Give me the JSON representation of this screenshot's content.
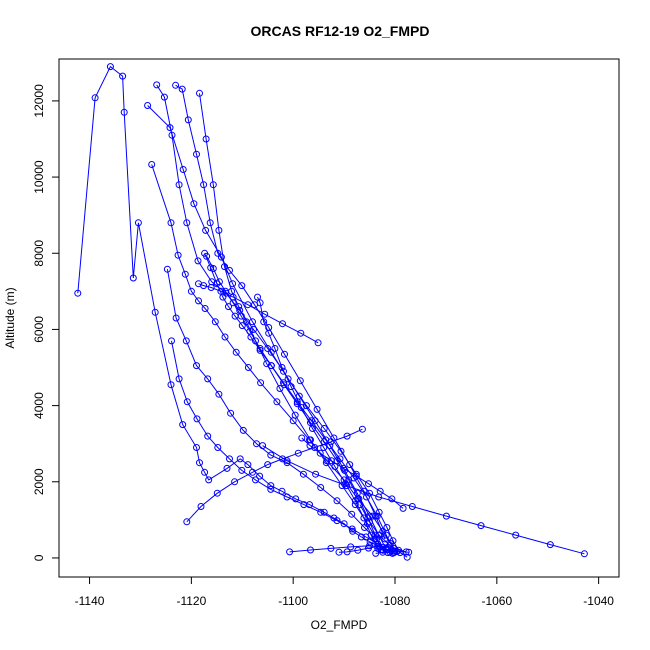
{
  "chart_data": {
    "type": "line",
    "title": "ORCAS RF12-19 O2_FMPD",
    "xlabel": "O2_FMPD",
    "ylabel": "Altitude (m)",
    "xlim": [
      -1146,
      -1036
    ],
    "ylim": [
      -500,
      13100
    ],
    "xticks": [
      -1140,
      -1120,
      -1100,
      -1080,
      -1060,
      -1040
    ],
    "yticks": [
      0,
      2000,
      4000,
      6000,
      8000,
      10000,
      12000
    ],
    "grid": false,
    "color": "#0000ff",
    "marker": "open-circle",
    "series": [
      {
        "x": [
          -1142.3,
          -1138.9,
          -1135.9,
          -1133.5,
          -1133.2,
          -1131.4,
          -1130.4,
          -1127.1,
          -1124.0,
          -1121.7,
          -1119.0,
          -1118.4,
          -1117.4,
          -1116.6,
          -1113.0,
          -1110.4,
          -1108.9,
          -1106.6,
          -1104.4,
          -1102.2,
          -1099.5,
          -1096.8,
          -1093.9,
          -1092.0,
          -1090.0,
          -1088.3,
          -1086.6,
          -1084.9,
          -1083.1,
          -1081.6,
          -1080.0,
          -1077.3
        ],
        "y": [
          6950,
          12080,
          12900,
          12650,
          11700,
          7350,
          8800,
          6450,
          4550,
          3500,
          2900,
          2500,
          2250,
          2050,
          2350,
          2600,
          2450,
          2150,
          1900,
          1750,
          1550,
          1400,
          1200,
          1050,
          900,
          700,
          550,
          420,
          300,
          220,
          180,
          150
        ]
      },
      {
        "x": [
          -1128.6,
          -1124.2,
          -1121.6,
          -1119.5,
          -1117.2,
          -1114.1,
          -1111.9,
          -1108.0,
          -1104.3,
          -1101.0,
          -1097.4,
          -1093.9,
          -1090.6,
          -1087.6,
          -1085.0,
          -1083.1,
          -1081.6,
          -1080.4,
          -1079.3
        ],
        "y": [
          11880,
          11300,
          10200,
          9300,
          8600,
          7900,
          7200,
          6200,
          5400,
          4700,
          4000,
          3400,
          2800,
          2200,
          1700,
          1200,
          800,
          450,
          200
        ]
      },
      {
        "x": [
          -1127.8,
          -1124.0,
          -1122.6,
          -1121.2,
          -1120.0,
          -1118.6,
          -1117.3,
          -1115.3,
          -1113.4,
          -1111.2,
          -1108.8,
          -1106.4,
          -1103.2,
          -1100.0,
          -1096.8,
          -1093.4,
          -1090.0,
          -1087.3,
          -1084.4,
          -1082.4,
          -1080.9,
          -1079.6
        ],
        "y": [
          10330,
          8800,
          7950,
          7450,
          7000,
          6750,
          6550,
          6200,
          5800,
          5400,
          5000,
          4600,
          4100,
          3600,
          3100,
          2550,
          2050,
          1550,
          1100,
          700,
          380,
          170
        ]
      },
      {
        "x": [
          -1126.8,
          -1125.3,
          -1123.8,
          -1122.4,
          -1120.9,
          -1118.7,
          -1116.0,
          -1113.2,
          -1110.5,
          -1107.8,
          -1105.0,
          -1101.9,
          -1098.8,
          -1095.7,
          -1092.8,
          -1089.9,
          -1087.4,
          -1085.0,
          -1083.2,
          -1081.8
        ],
        "y": [
          12420,
          12100,
          11100,
          9800,
          8800,
          7800,
          7250,
          6950,
          6500,
          6000,
          5500,
          4900,
          4250,
          3600,
          2950,
          2300,
          1700,
          1100,
          600,
          250
        ]
      },
      {
        "x": [
          -1123.1,
          -1121.8,
          -1120.6,
          -1119.0,
          -1117.6,
          -1116.3,
          -1114.8,
          -1112.5,
          -1110.1,
          -1107.6,
          -1104.8,
          -1101.7,
          -1098.6,
          -1095.3,
          -1092.0,
          -1088.9,
          -1086.1,
          -1083.8,
          -1082.0
        ],
        "y": [
          12410,
          12310,
          11500,
          10600,
          9800,
          8800,
          8000,
          7550,
          7150,
          6650,
          6050,
          5350,
          4650,
          3900,
          3150,
          2450,
          1750,
          1100,
          500
        ]
      },
      {
        "x": [
          -1118.4,
          -1117.1,
          -1115.7,
          -1114.6,
          -1113.5,
          -1112.1,
          -1110.7,
          -1109.2,
          -1107.4,
          -1105.2,
          -1102.6,
          -1099.6,
          -1096.6,
          -1093.5,
          -1090.4,
          -1087.8,
          -1085.4,
          -1083.6,
          -1082.3
        ],
        "y": [
          12200,
          11000,
          9800,
          8600,
          7650,
          7000,
          6600,
          6200,
          5700,
          5100,
          4450,
          3750,
          3100,
          2500,
          1900,
          1400,
          900,
          500,
          200
        ]
      },
      {
        "x": [
          -1124.7,
          -1123.0,
          -1121.0,
          -1119.0,
          -1116.8,
          -1114.6,
          -1112.3,
          -1109.8,
          -1107.2,
          -1104.4,
          -1101.2,
          -1098.0,
          -1094.6,
          -1091.4,
          -1088.5,
          -1086.0,
          -1083.9,
          -1082.3,
          -1081.0
        ],
        "y": [
          7580,
          6300,
          5700,
          5050,
          4700,
          4300,
          3800,
          3350,
          3000,
          2700,
          2500,
          2200,
          1850,
          1500,
          1150,
          800,
          500,
          280,
          150
        ]
      },
      {
        "x": [
          -1123.9,
          -1122.4,
          -1120.8,
          -1118.9,
          -1116.8,
          -1114.8,
          -1112.5,
          -1110.1,
          -1107.4,
          -1104.4,
          -1101.2,
          -1097.9,
          -1094.6,
          -1091.4,
          -1088.4,
          -1085.7,
          -1083.4,
          -1081.6,
          -1080.2
        ],
        "y": [
          5700,
          4700,
          4100,
          3650,
          3200,
          2900,
          2600,
          2300,
          2050,
          1800,
          1600,
          1400,
          1200,
          980,
          760,
          550,
          370,
          220,
          140
        ]
      },
      {
        "x": [
          -1117.4,
          -1116.2,
          -1115.0,
          -1113.8,
          -1112.7,
          -1111.4,
          -1110.0,
          -1108.3,
          -1106.5,
          -1104.3,
          -1101.9,
          -1099.2,
          -1096.4,
          -1093.6,
          -1090.8,
          -1088.1,
          -1085.6,
          -1083.5,
          -1081.7,
          -1080.3
        ],
        "y": [
          8000,
          7620,
          7200,
          6850,
          6600,
          6350,
          6100,
          5800,
          5450,
          5050,
          4600,
          4100,
          3600,
          3100,
          2600,
          2100,
          1600,
          1100,
          600,
          250
        ]
      },
      {
        "x": [
          -1117.0,
          -1115.7,
          -1114.5,
          -1113.3,
          -1111.8,
          -1110.2,
          -1108.5,
          -1106.5,
          -1104.3,
          -1101.8,
          -1099.2,
          -1096.6,
          -1093.9,
          -1091.4,
          -1089.1,
          -1087.1,
          -1085.3,
          -1083.9,
          -1082.7
        ],
        "y": [
          7920,
          7600,
          7250,
          7000,
          6700,
          6350,
          5950,
          5500,
          5050,
          4550,
          4050,
          3550,
          3050,
          2550,
          2050,
          1550,
          1050,
          600,
          220
        ]
      },
      {
        "x": [
          -1107.0,
          -1106.5,
          -1105.8,
          -1104.8,
          -1103.6,
          -1102.2,
          -1100.4,
          -1098.4,
          -1096.2,
          -1094.0,
          -1091.8,
          -1089.7,
          -1087.8,
          -1086.1,
          -1084.7,
          -1083.4
        ],
        "y": [
          6850,
          6700,
          6200,
          5900,
          5500,
          5000,
          4500,
          3950,
          3400,
          2900,
          2400,
          1950,
          1500,
          1050,
          600,
          250
        ]
      },
      {
        "x": [
          -1095.1,
          -1098.5,
          -1102.1,
          -1105.6,
          -1108.9,
          -1111.8,
          -1114.2,
          -1116.1,
          -1117.6,
          -1118.6
        ],
        "y": [
          5650,
          5900,
          6150,
          6400,
          6650,
          6850,
          7000,
          7100,
          7150,
          7200
        ]
      },
      {
        "x": [
          -1086.4,
          -1089.4,
          -1092.6,
          -1095.8,
          -1099.0,
          -1102.1,
          -1105.0,
          -1108.0,
          -1111.5,
          -1114.9,
          -1118.1,
          -1120.9
        ],
        "y": [
          3380,
          3200,
          3050,
          2900,
          2750,
          2600,
          2450,
          2250,
          2000,
          1700,
          1350,
          950
        ]
      },
      {
        "x": [
          -1042.8,
          -1049.5,
          -1056.3,
          -1063.1,
          -1069.9,
          -1076.6,
          -1083.2,
          -1089.5,
          -1095.6,
          -1101.2,
          -1106.0
        ],
        "y": [
          110,
          350,
          600,
          850,
          1100,
          1350,
          1600,
          1900,
          2200,
          2550,
          2950
        ]
      },
      {
        "x": [
          -1078.4,
          -1080.6,
          -1082.9,
          -1085.2,
          -1087.6,
          -1090.1,
          -1092.5,
          -1094.7,
          -1096.7,
          -1098.3
        ],
        "y": [
          1300,
          1550,
          1750,
          1950,
          2150,
          2350,
          2550,
          2750,
          2950,
          3150
        ]
      },
      {
        "x": [
          -1100.7,
          -1096.6,
          -1092.6,
          -1088.7,
          -1085.0,
          -1081.4,
          -1077.8
        ],
        "y": [
          160,
          210,
          250,
          290,
          320,
          280,
          160
        ]
      },
      {
        "x": [
          -1091.0,
          -1089.4,
          -1087.3,
          -1085.2,
          -1083.4,
          -1081.8,
          -1080.2
        ],
        "y": [
          150,
          160,
          200,
          260,
          300,
          240,
          180
        ]
      },
      {
        "x": [
          -1083.8,
          -1082.4,
          -1081.4,
          -1080.5
        ],
        "y": [
          120,
          150,
          140,
          120
        ]
      },
      {
        "x": [
          -1077.6,
          -1079.0,
          -1081.0,
          -1083.1,
          -1085.0,
          -1086.9
        ],
        "y": [
          20,
          140,
          330,
          600,
          950,
          1400
        ]
      }
    ]
  }
}
